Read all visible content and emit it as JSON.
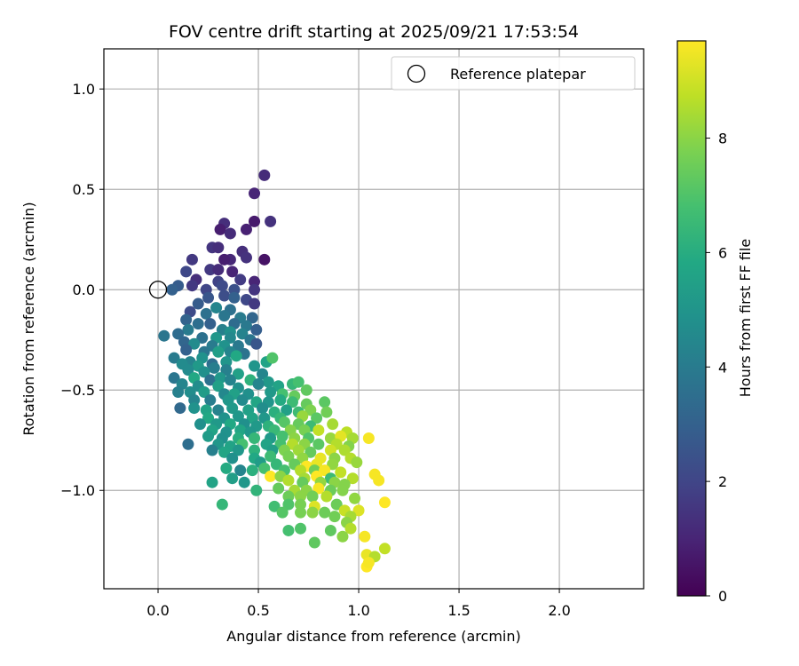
{
  "chart_data": {
    "type": "scatter",
    "title": "FOV centre drift starting at 2025/09/21 17:53:54",
    "xlabel": "Angular distance from reference (arcmin)",
    "ylabel": "Rotation from reference (arcmin)",
    "xlim": [
      -0.27,
      2.42
    ],
    "ylim": [
      -1.49,
      1.2
    ],
    "xticks": [
      0.0,
      0.5,
      1.0,
      1.5,
      2.0
    ],
    "xtick_labels": [
      "0.0",
      "0.5",
      "1.0",
      "1.5",
      "2.0"
    ],
    "yticks": [
      -1.0,
      -0.5,
      0.0,
      0.5,
      1.0
    ],
    "ytick_labels": [
      "−1.0",
      "−0.5",
      "0.0",
      "0.5",
      "1.0"
    ],
    "grid": true,
    "legend": {
      "position": "top-right",
      "label": "Reference platepar"
    },
    "reference_point": {
      "x": 0.0,
      "y": 0.0
    },
    "colorbar": {
      "label": "Hours from first FF file",
      "range": [
        0,
        9.7
      ],
      "ticks": [
        0,
        2,
        4,
        6,
        8
      ],
      "tick_labels": [
        "0",
        "2",
        "4",
        "6",
        "8"
      ],
      "colormap": "viridis"
    },
    "points": [
      [
        0.53,
        0.57,
        1.2
      ],
      [
        0.48,
        0.48,
        1.0
      ],
      [
        0.56,
        0.34,
        1.4
      ],
      [
        0.48,
        0.34,
        0.7
      ],
      [
        0.33,
        0.33,
        1.3
      ],
      [
        0.44,
        0.3,
        0.9
      ],
      [
        0.31,
        0.3,
        0.8
      ],
      [
        0.36,
        0.28,
        1.2
      ],
      [
        0.27,
        0.21,
        1.5
      ],
      [
        0.3,
        0.21,
        1.3
      ],
      [
        0.53,
        0.15,
        0.5
      ],
      [
        0.17,
        0.15,
        1.6
      ],
      [
        0.42,
        0.19,
        1.3
      ],
      [
        0.36,
        0.15,
        1.1
      ],
      [
        0.33,
        0.15,
        0.8
      ],
      [
        0.44,
        0.16,
        1.4
      ],
      [
        0.26,
        0.1,
        1.6
      ],
      [
        0.3,
        0.1,
        1.2
      ],
      [
        0.37,
        0.09,
        1.0
      ],
      [
        0.14,
        0.09,
        2.1
      ],
      [
        0.19,
        0.05,
        1.3
      ],
      [
        0.1,
        0.02,
        2.8
      ],
      [
        0.07,
        0.0,
        3.0
      ],
      [
        0.17,
        0.02,
        1.6
      ],
      [
        0.3,
        0.04,
        1.9
      ],
      [
        0.41,
        0.05,
        1.7
      ],
      [
        0.48,
        0.04,
        1.0
      ],
      [
        0.24,
        0.0,
        2.0
      ],
      [
        0.32,
        0.02,
        2.2
      ],
      [
        0.38,
        0.0,
        2.4
      ],
      [
        0.48,
        0.0,
        1.5
      ],
      [
        0.25,
        -0.04,
        2.6
      ],
      [
        0.33,
        -0.03,
        2.3
      ],
      [
        0.38,
        -0.04,
        3.0
      ],
      [
        0.44,
        -0.05,
        2.1
      ],
      [
        0.48,
        -0.07,
        1.6
      ],
      [
        0.2,
        -0.07,
        2.8
      ],
      [
        0.29,
        -0.09,
        4.4
      ],
      [
        0.36,
        -0.1,
        3.6
      ],
      [
        0.16,
        -0.11,
        2.2
      ],
      [
        0.24,
        -0.12,
        3.6
      ],
      [
        0.33,
        -0.13,
        3.8
      ],
      [
        0.41,
        -0.14,
        4.0
      ],
      [
        0.47,
        -0.14,
        3.2
      ],
      [
        0.14,
        -0.15,
        3.1
      ],
      [
        0.2,
        -0.17,
        3.5
      ],
      [
        0.26,
        -0.17,
        3.0
      ],
      [
        0.38,
        -0.17,
        3.4
      ],
      [
        0.44,
        -0.18,
        3.9
      ],
      [
        0.49,
        -0.2,
        2.9
      ],
      [
        0.15,
        -0.2,
        4.0
      ],
      [
        0.32,
        -0.2,
        4.2
      ],
      [
        0.36,
        -0.21,
        4.8
      ],
      [
        0.42,
        -0.22,
        4.3
      ],
      [
        0.1,
        -0.22,
        3.4
      ],
      [
        0.22,
        -0.24,
        3.6
      ],
      [
        0.29,
        -0.24,
        5.1
      ],
      [
        0.36,
        -0.24,
        4.5
      ],
      [
        0.46,
        -0.25,
        3.8
      ],
      [
        0.03,
        -0.23,
        3.8
      ],
      [
        0.13,
        -0.26,
        3.2
      ],
      [
        0.18,
        -0.27,
        4.6
      ],
      [
        0.27,
        -0.28,
        4.0
      ],
      [
        0.33,
        -0.28,
        4.9
      ],
      [
        0.4,
        -0.28,
        3.9
      ],
      [
        0.49,
        -0.27,
        2.6
      ],
      [
        0.14,
        -0.3,
        3.0
      ],
      [
        0.23,
        -0.31,
        3.8
      ],
      [
        0.3,
        -0.31,
        5.4
      ],
      [
        0.36,
        -0.31,
        4.4
      ],
      [
        0.43,
        -0.32,
        3.7
      ],
      [
        0.39,
        -0.33,
        5.8
      ],
      [
        0.22,
        -0.34,
        4.9
      ],
      [
        0.08,
        -0.34,
        4.0
      ],
      [
        0.16,
        -0.36,
        4.3
      ],
      [
        0.27,
        -0.37,
        3.5
      ],
      [
        0.34,
        -0.36,
        5.0
      ],
      [
        0.12,
        -0.37,
        4.6
      ],
      [
        0.2,
        -0.38,
        5.2
      ],
      [
        0.28,
        -0.39,
        4.1
      ],
      [
        0.48,
        -0.38,
        5.0
      ],
      [
        0.54,
        -0.36,
        5.6
      ],
      [
        0.57,
        -0.34,
        7.0
      ],
      [
        0.15,
        -0.4,
        4.6
      ],
      [
        0.34,
        -0.4,
        4.2
      ],
      [
        0.23,
        -0.41,
        4.8
      ],
      [
        0.4,
        -0.42,
        5.5
      ],
      [
        0.52,
        -0.42,
        4.4
      ],
      [
        0.08,
        -0.44,
        3.8
      ],
      [
        0.18,
        -0.44,
        5.8
      ],
      [
        0.26,
        -0.45,
        3.6
      ],
      [
        0.31,
        -0.44,
        5.1
      ],
      [
        0.36,
        -0.45,
        4.3
      ],
      [
        0.46,
        -0.45,
        6.2
      ],
      [
        0.55,
        -0.46,
        5.2
      ],
      [
        0.67,
        -0.47,
        6.4
      ],
      [
        0.7,
        -0.46,
        6.8
      ],
      [
        0.12,
        -0.47,
        4.4
      ],
      [
        0.2,
        -0.48,
        4.7
      ],
      [
        0.3,
        -0.48,
        5.5
      ],
      [
        0.4,
        -0.49,
        4.8
      ],
      [
        0.5,
        -0.47,
        4.4
      ],
      [
        0.6,
        -0.48,
        5.6
      ],
      [
        0.74,
        -0.5,
        7.3
      ],
      [
        0.1,
        -0.51,
        4.2
      ],
      [
        0.16,
        -0.51,
        4.7
      ],
      [
        0.23,
        -0.51,
        5.3
      ],
      [
        0.33,
        -0.52,
        4.5
      ],
      [
        0.38,
        -0.52,
        5.5
      ],
      [
        0.45,
        -0.52,
        4.8
      ],
      [
        0.56,
        -0.51,
        5.2
      ],
      [
        0.62,
        -0.52,
        6.8
      ],
      [
        0.68,
        -0.53,
        7.4
      ],
      [
        0.18,
        -0.55,
        4.4
      ],
      [
        0.26,
        -0.55,
        4.1
      ],
      [
        0.35,
        -0.55,
        5.1
      ],
      [
        0.42,
        -0.55,
        4.6
      ],
      [
        0.49,
        -0.56,
        5.7
      ],
      [
        0.55,
        -0.56,
        5.0
      ],
      [
        0.61,
        -0.55,
        5.9
      ],
      [
        0.67,
        -0.56,
        6.6
      ],
      [
        0.74,
        -0.57,
        7.4
      ],
      [
        0.83,
        -0.56,
        7.2
      ],
      [
        0.11,
        -0.59,
        3.3
      ],
      [
        0.18,
        -0.59,
        4.9
      ],
      [
        0.24,
        -0.6,
        5.6
      ],
      [
        0.3,
        -0.6,
        4.3
      ],
      [
        0.37,
        -0.59,
        5.2
      ],
      [
        0.45,
        -0.6,
        5.5
      ],
      [
        0.52,
        -0.59,
        4.7
      ],
      [
        0.58,
        -0.61,
        6.1
      ],
      [
        0.64,
        -0.6,
        5.5
      ],
      [
        0.7,
        -0.61,
        6.6
      ],
      [
        0.76,
        -0.6,
        7.8
      ],
      [
        0.84,
        -0.61,
        7.6
      ],
      [
        0.25,
        -0.64,
        5.8
      ],
      [
        0.33,
        -0.64,
        4.9
      ],
      [
        0.4,
        -0.63,
        5.1
      ],
      [
        0.47,
        -0.64,
        5.6
      ],
      [
        0.53,
        -0.64,
        5.1
      ],
      [
        0.61,
        -0.64,
        6.4
      ],
      [
        0.72,
        -0.63,
        8.2
      ],
      [
        0.79,
        -0.64,
        7.2
      ],
      [
        0.21,
        -0.67,
        4.8
      ],
      [
        0.29,
        -0.67,
        5.2
      ],
      [
        0.36,
        -0.67,
        5.8
      ],
      [
        0.43,
        -0.67,
        4.8
      ],
      [
        0.49,
        -0.68,
        5.2
      ],
      [
        0.55,
        -0.68,
        6.2
      ],
      [
        0.63,
        -0.66,
        7.1
      ],
      [
        0.7,
        -0.67,
        7.4
      ],
      [
        0.76,
        -0.68,
        6.6
      ],
      [
        0.87,
        -0.67,
        8.4
      ],
      [
        0.27,
        -0.7,
        5.6
      ],
      [
        0.34,
        -0.71,
        4.9
      ],
      [
        0.41,
        -0.7,
        5.7
      ],
      [
        0.46,
        -0.71,
        5.1
      ],
      [
        0.58,
        -0.7,
        6.5
      ],
      [
        0.66,
        -0.7,
        7.9
      ],
      [
        0.73,
        -0.7,
        7.7
      ],
      [
        0.8,
        -0.7,
        8.8
      ],
      [
        0.94,
        -0.71,
        8.7
      ],
      [
        0.25,
        -0.73,
        5.3
      ],
      [
        0.32,
        -0.74,
        4.8
      ],
      [
        0.4,
        -0.74,
        6.0
      ],
      [
        0.48,
        -0.74,
        6.4
      ],
      [
        0.56,
        -0.74,
        5.2
      ],
      [
        0.62,
        -0.73,
        6.8
      ],
      [
        0.68,
        -0.74,
        8.0
      ],
      [
        0.75,
        -0.74,
        7.0
      ],
      [
        0.86,
        -0.74,
        8.2
      ],
      [
        0.91,
        -0.73,
        9.3
      ],
      [
        0.97,
        -0.74,
        8.4
      ],
      [
        1.05,
        -0.74,
        9.6
      ],
      [
        0.15,
        -0.77,
        3.5
      ],
      [
        0.3,
        -0.77,
        5.1
      ],
      [
        0.36,
        -0.78,
        5.6
      ],
      [
        0.42,
        -0.77,
        6.8
      ],
      [
        0.54,
        -0.77,
        5.6
      ],
      [
        0.61,
        -0.77,
        6.8
      ],
      [
        0.67,
        -0.77,
        8.6
      ],
      [
        0.73,
        -0.77,
        8.0
      ],
      [
        0.8,
        -0.77,
        7.2
      ],
      [
        0.89,
        -0.77,
        8.6
      ],
      [
        0.95,
        -0.78,
        7.9
      ],
      [
        0.27,
        -0.8,
        4.2
      ],
      [
        0.33,
        -0.81,
        5.7
      ],
      [
        0.4,
        -0.8,
        5.1
      ],
      [
        0.48,
        -0.8,
        6.2
      ],
      [
        0.57,
        -0.8,
        5.4
      ],
      [
        0.63,
        -0.8,
        7.8
      ],
      [
        0.7,
        -0.8,
        8.3
      ],
      [
        0.76,
        -0.81,
        7.4
      ],
      [
        0.86,
        -0.8,
        9.0
      ],
      [
        0.93,
        -0.8,
        8.5
      ],
      [
        0.37,
        -0.84,
        4.8
      ],
      [
        0.48,
        -0.84,
        5.8
      ],
      [
        0.56,
        -0.83,
        6.6
      ],
      [
        0.65,
        -0.83,
        7.7
      ],
      [
        0.72,
        -0.84,
        8.1
      ],
      [
        0.81,
        -0.84,
        9.4
      ],
      [
        0.88,
        -0.84,
        8.0
      ],
      [
        0.96,
        -0.84,
        8.6
      ],
      [
        0.51,
        -0.86,
        5.3
      ],
      [
        0.59,
        -0.87,
        6.4
      ],
      [
        0.68,
        -0.87,
        7.4
      ],
      [
        0.74,
        -0.88,
        9.7
      ],
      [
        0.79,
        -0.87,
        9.4
      ],
      [
        0.87,
        -0.87,
        8.1
      ],
      [
        0.99,
        -0.86,
        8.2
      ],
      [
        0.34,
        -0.89,
        5.9
      ],
      [
        0.41,
        -0.9,
        4.4
      ],
      [
        0.47,
        -0.9,
        6.1
      ],
      [
        0.53,
        -0.89,
        6.8
      ],
      [
        0.63,
        -0.9,
        6.8
      ],
      [
        0.71,
        -0.9,
        8.6
      ],
      [
        0.78,
        -0.9,
        7.6
      ],
      [
        0.83,
        -0.9,
        9.6
      ],
      [
        0.91,
        -0.91,
        8.8
      ],
      [
        0.56,
        -0.93,
        9.7
      ],
      [
        0.37,
        -0.94,
        5.4
      ],
      [
        0.61,
        -0.93,
        8.0
      ],
      [
        0.73,
        -0.94,
        8.4
      ],
      [
        0.79,
        -0.93,
        9.8
      ],
      [
        0.86,
        -0.94,
        6.6
      ],
      [
        0.97,
        -0.94,
        8.6
      ],
      [
        1.08,
        -0.92,
        9.6
      ],
      [
        0.27,
        -0.96,
        5.6
      ],
      [
        0.43,
        -0.96,
        5.1
      ],
      [
        0.65,
        -0.95,
        8.6
      ],
      [
        0.72,
        -0.96,
        7.4
      ],
      [
        0.81,
        -0.96,
        8.1
      ],
      [
        0.88,
        -0.96,
        8.0
      ],
      [
        0.93,
        -0.97,
        7.9
      ],
      [
        1.1,
        -0.95,
        9.6
      ],
      [
        0.49,
        -1.0,
        6.3
      ],
      [
        0.6,
        -0.99,
        7.4
      ],
      [
        0.68,
        -1.0,
        8.4
      ],
      [
        0.74,
        -1.0,
        8.0
      ],
      [
        0.8,
        -0.99,
        9.6
      ],
      [
        0.86,
        -1.0,
        7.5
      ],
      [
        0.92,
        -1.0,
        7.9
      ],
      [
        0.65,
        -1.03,
        7.5
      ],
      [
        0.71,
        -1.03,
        8.0
      ],
      [
        0.77,
        -1.03,
        7.6
      ],
      [
        0.84,
        -1.03,
        8.6
      ],
      [
        0.98,
        -1.04,
        8.1
      ],
      [
        0.32,
        -1.07,
        6.4
      ],
      [
        0.58,
        -1.08,
        6.7
      ],
      [
        0.65,
        -1.07,
        7.0
      ],
      [
        0.71,
        -1.07,
        7.7
      ],
      [
        0.78,
        -1.08,
        9.2
      ],
      [
        0.89,
        -1.07,
        7.5
      ],
      [
        1.13,
        -1.06,
        9.7
      ],
      [
        0.62,
        -1.11,
        7.1
      ],
      [
        0.71,
        -1.11,
        7.7
      ],
      [
        0.77,
        -1.11,
        8.0
      ],
      [
        0.83,
        -1.11,
        7.5
      ],
      [
        0.93,
        -1.1,
        8.9
      ],
      [
        1.0,
        -1.1,
        9.2
      ],
      [
        0.88,
        -1.13,
        7.6
      ],
      [
        0.96,
        -1.13,
        8.4
      ],
      [
        0.94,
        -1.16,
        8.0
      ],
      [
        0.71,
        -1.19,
        7.0
      ],
      [
        0.65,
        -1.2,
        6.8
      ],
      [
        0.86,
        -1.2,
        7.3
      ],
      [
        0.96,
        -1.19,
        8.6
      ],
      [
        0.92,
        -1.23,
        8.0
      ],
      [
        1.03,
        -1.23,
        9.6
      ],
      [
        0.78,
        -1.26,
        7.3
      ],
      [
        1.13,
        -1.29,
        8.8
      ],
      [
        1.04,
        -1.32,
        9.4
      ],
      [
        1.08,
        -1.33,
        8.6
      ],
      [
        1.04,
        -1.38,
        9.7
      ],
      [
        1.05,
        -1.36,
        9.6
      ]
    ]
  }
}
